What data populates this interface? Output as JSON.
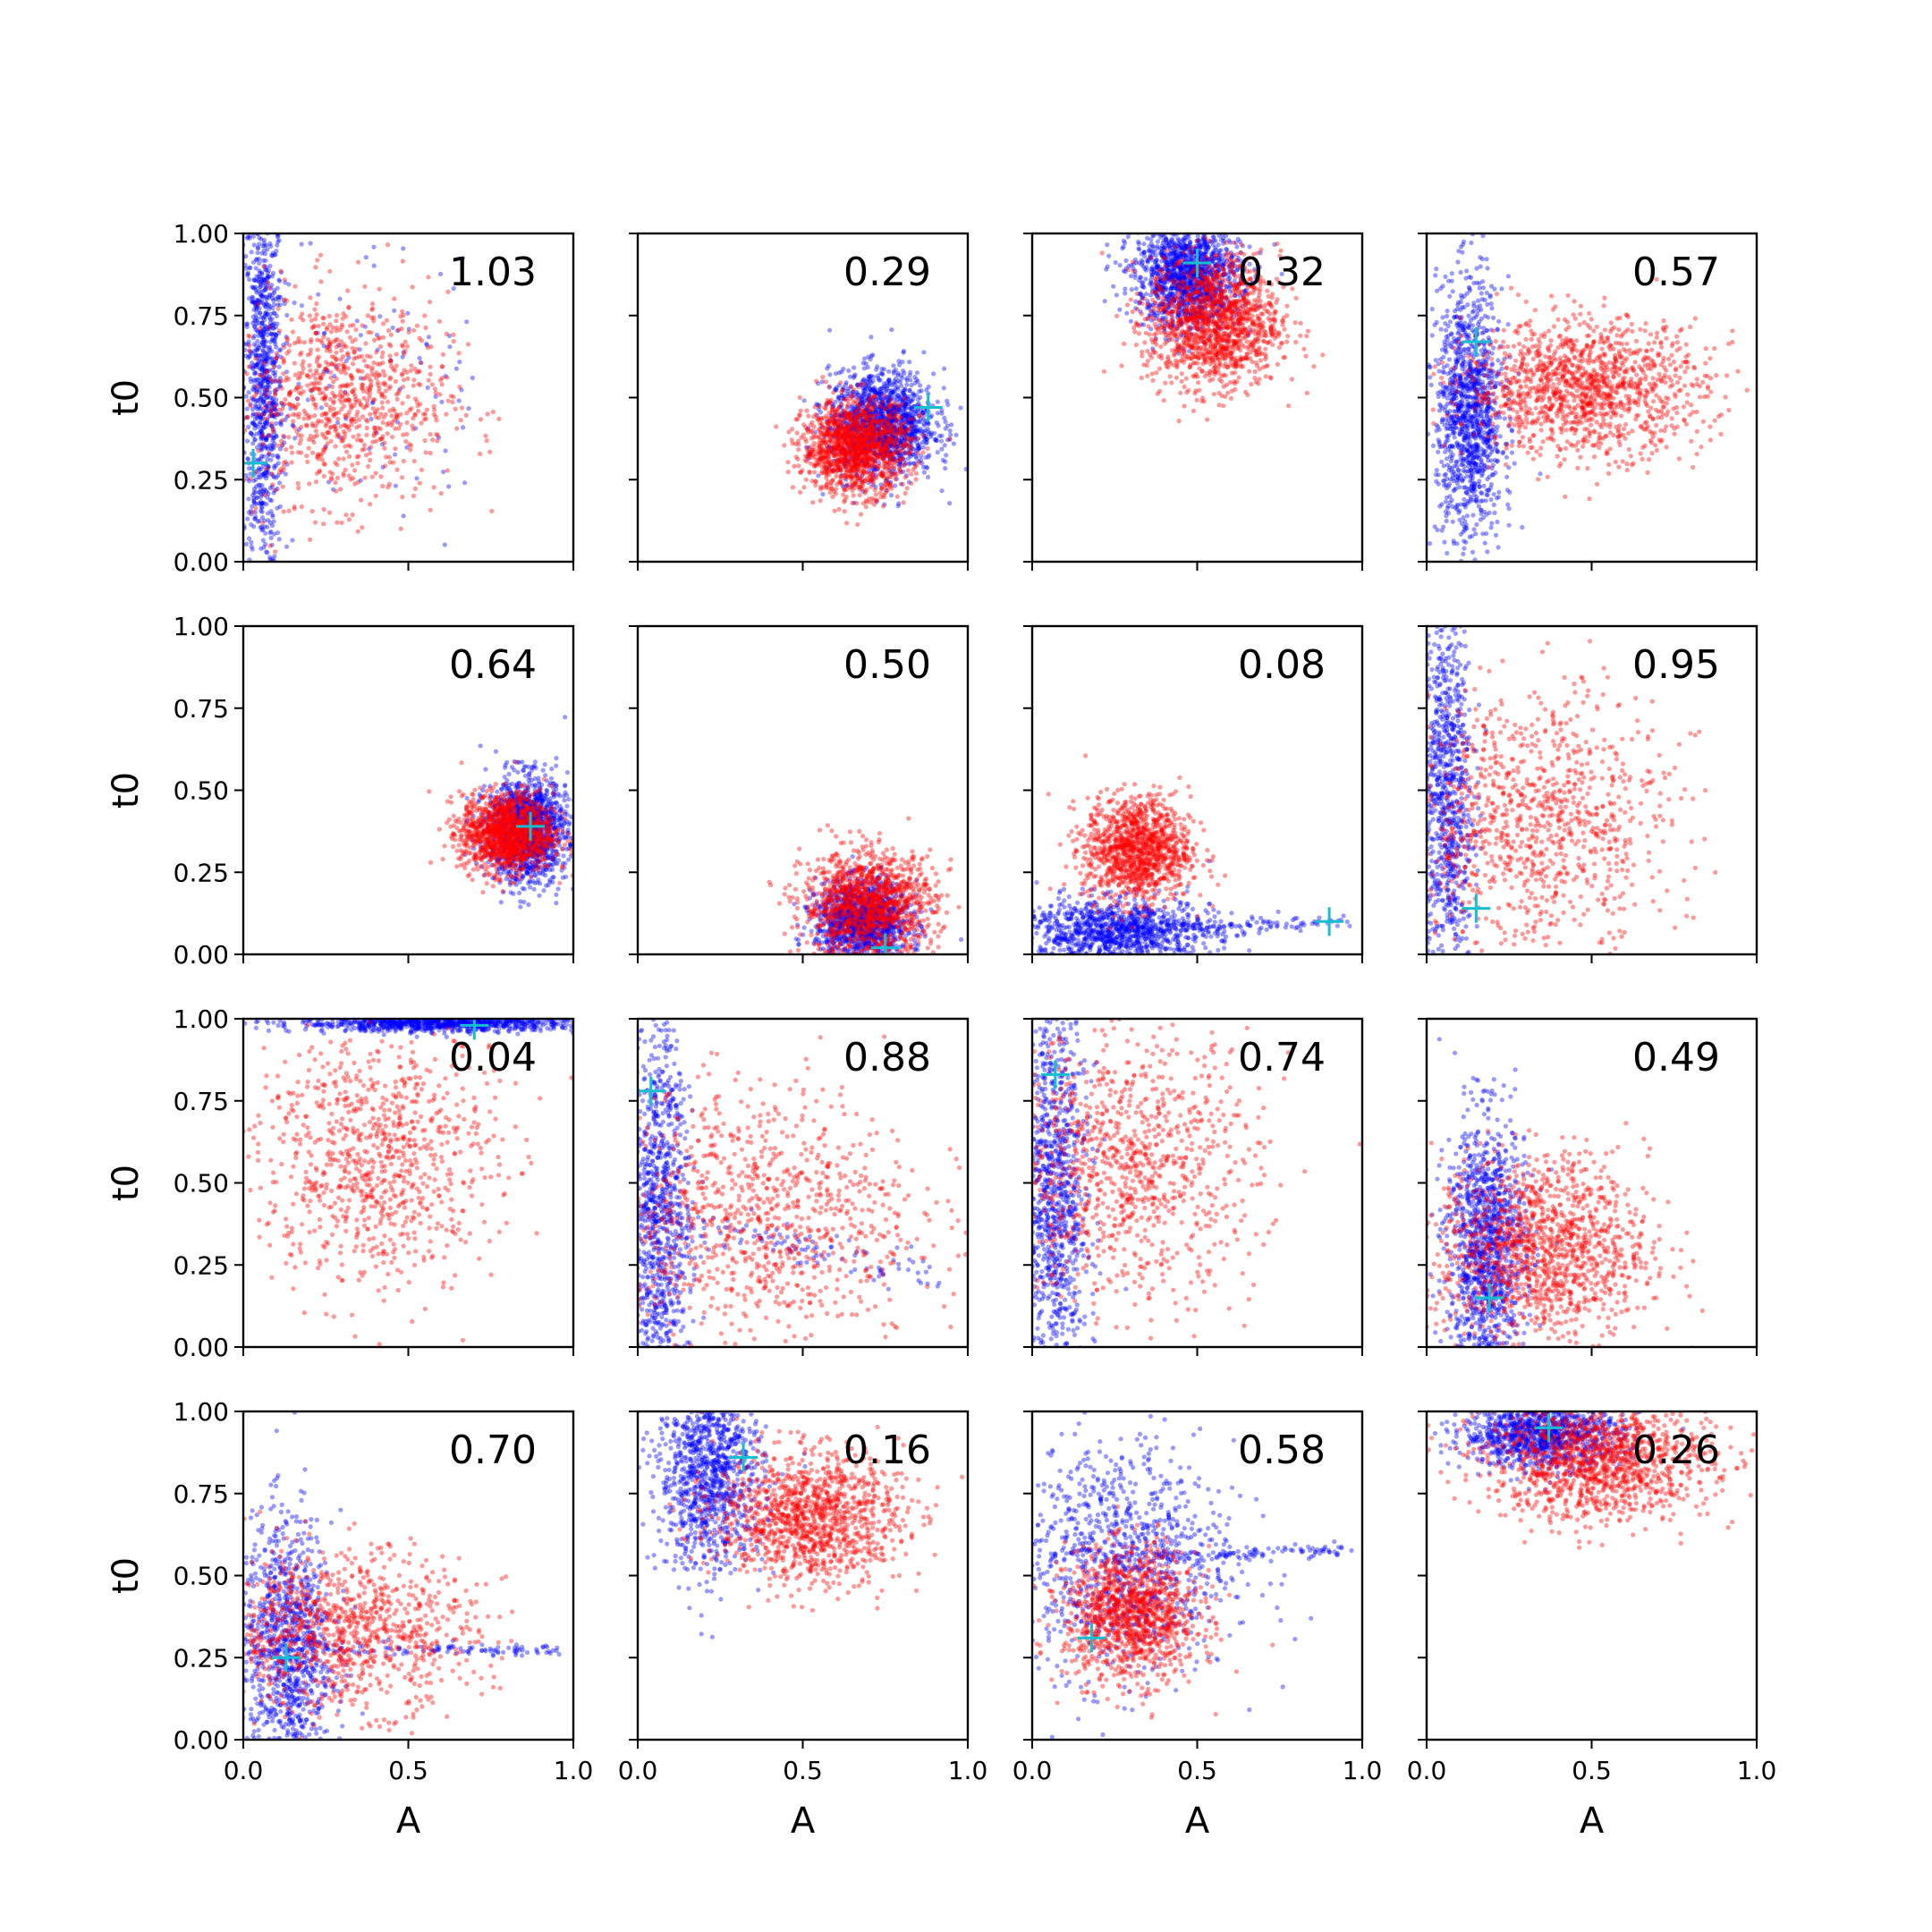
{
  "chart_data": [
    {
      "type": "scatter",
      "annotation": "1.03",
      "xlabel": "",
      "ylabel": "t0",
      "marker": [
        0.03,
        0.3
      ],
      "blue": {
        "cx": 0.06,
        "cy": 0.55,
        "sx": 0.03,
        "sy": 0.3,
        "n": 900,
        "tail": [
          0.7,
          0.55,
          0.25
        ]
      },
      "red": {
        "cx": 0.3,
        "cy": 0.5,
        "sx": 0.16,
        "sy": 0.16,
        "n": 900
      }
    },
    {
      "type": "scatter",
      "annotation": "0.29",
      "xlabel": "",
      "ylabel": "",
      "marker": [
        0.88,
        0.47
      ],
      "blue": {
        "cx": 0.74,
        "cy": 0.42,
        "sx": 0.08,
        "sy": 0.08,
        "n": 1400
      },
      "red": {
        "cx": 0.66,
        "cy": 0.35,
        "sx": 0.08,
        "sy": 0.07,
        "n": 1400
      }
    },
    {
      "type": "scatter",
      "annotation": "0.32",
      "xlabel": "",
      "ylabel": "",
      "marker": [
        0.5,
        0.91
      ],
      "blue": {
        "cx": 0.47,
        "cy": 0.87,
        "sx": 0.08,
        "sy": 0.08,
        "n": 1400
      },
      "red": {
        "cx": 0.55,
        "cy": 0.73,
        "sx": 0.1,
        "sy": 0.1,
        "n": 1400
      }
    },
    {
      "type": "scatter",
      "annotation": "0.57",
      "xlabel": "",
      "ylabel": "",
      "marker": [
        0.15,
        0.67
      ],
      "blue": {
        "cx": 0.13,
        "cy": 0.45,
        "sx": 0.05,
        "sy": 0.2,
        "n": 1200
      },
      "red": {
        "cx": 0.48,
        "cy": 0.53,
        "sx": 0.18,
        "sy": 0.1,
        "n": 1300
      }
    },
    {
      "type": "scatter",
      "annotation": "0.64",
      "xlabel": "",
      "ylabel": "t0",
      "marker": [
        0.87,
        0.39
      ],
      "blue": {
        "cx": 0.86,
        "cy": 0.38,
        "sx": 0.06,
        "sy": 0.08,
        "n": 1400
      },
      "red": {
        "cx": 0.8,
        "cy": 0.37,
        "sx": 0.07,
        "sy": 0.06,
        "n": 1400
      }
    },
    {
      "type": "scatter",
      "annotation": "0.50",
      "xlabel": "",
      "ylabel": "",
      "marker": [
        0.75,
        0.02
      ],
      "blue": {
        "cx": 0.68,
        "cy": 0.1,
        "sx": 0.07,
        "sy": 0.06,
        "n": 1300
      },
      "red": {
        "cx": 0.7,
        "cy": 0.15,
        "sx": 0.1,
        "sy": 0.08,
        "n": 1300
      }
    },
    {
      "type": "scatter",
      "annotation": "0.08",
      "xlabel": "",
      "ylabel": "",
      "marker": [
        0.9,
        0.1
      ],
      "blue": {
        "cx": 0.25,
        "cy": 0.07,
        "sx": 0.15,
        "sy": 0.05,
        "n": 1100,
        "tail": [
          0.95,
          0.1,
          0.01
        ]
      },
      "red": {
        "cx": 0.32,
        "cy": 0.32,
        "sx": 0.08,
        "sy": 0.08,
        "n": 1200
      }
    },
    {
      "type": "scatter",
      "annotation": "0.95",
      "xlabel": "",
      "ylabel": "",
      "marker": [
        0.15,
        0.14
      ],
      "blue": {
        "cx": 0.06,
        "cy": 0.5,
        "sx": 0.04,
        "sy": 0.3,
        "n": 900
      },
      "red": {
        "cx": 0.33,
        "cy": 0.4,
        "sx": 0.2,
        "sy": 0.2,
        "n": 1000
      }
    },
    {
      "type": "scatter",
      "annotation": "0.04",
      "xlabel": "",
      "ylabel": "t0",
      "marker": [
        0.7,
        0.98
      ],
      "blue": {
        "cx": 0.6,
        "cy": 0.985,
        "sx": 0.22,
        "sy": 0.012,
        "n": 900
      },
      "red": {
        "cx": 0.4,
        "cy": 0.58,
        "sx": 0.18,
        "sy": 0.2,
        "n": 900
      }
    },
    {
      "type": "scatter",
      "annotation": "0.88",
      "xlabel": "",
      "ylabel": "",
      "marker": [
        0.04,
        0.78
      ],
      "blue": {
        "cx": 0.06,
        "cy": 0.4,
        "sx": 0.05,
        "sy": 0.3,
        "n": 1000,
        "tail": [
          0.9,
          0.22,
          0.03
        ]
      },
      "red": {
        "cx": 0.35,
        "cy": 0.4,
        "sx": 0.25,
        "sy": 0.2,
        "n": 1000
      }
    },
    {
      "type": "scatter",
      "annotation": "0.74",
      "xlabel": "",
      "ylabel": "",
      "marker": [
        0.07,
        0.83
      ],
      "blue": {
        "cx": 0.07,
        "cy": 0.45,
        "sx": 0.05,
        "sy": 0.3,
        "n": 1000
      },
      "red": {
        "cx": 0.28,
        "cy": 0.55,
        "sx": 0.2,
        "sy": 0.2,
        "n": 1000
      }
    },
    {
      "type": "scatter",
      "annotation": "0.49",
      "xlabel": "",
      "ylabel": "",
      "marker": [
        0.19,
        0.15
      ],
      "blue": {
        "cx": 0.18,
        "cy": 0.3,
        "sx": 0.06,
        "sy": 0.2,
        "n": 1200
      },
      "red": {
        "cx": 0.35,
        "cy": 0.3,
        "sx": 0.16,
        "sy": 0.14,
        "n": 1300
      }
    },
    {
      "type": "scatter",
      "annotation": "0.70",
      "xlabel": "A",
      "ylabel": "t0",
      "marker": [
        0.13,
        0.25
      ],
      "blue": {
        "cx": 0.13,
        "cy": 0.28,
        "sx": 0.07,
        "sy": 0.2,
        "n": 1000,
        "tail": [
          0.95,
          0.27,
          0.01
        ]
      },
      "red": {
        "cx": 0.3,
        "cy": 0.33,
        "sx": 0.2,
        "sy": 0.12,
        "n": 1000
      }
    },
    {
      "type": "scatter",
      "annotation": "0.16",
      "xlabel": "A",
      "ylabel": "",
      "marker": [
        0.32,
        0.86
      ],
      "blue": {
        "cx": 0.22,
        "cy": 0.82,
        "sx": 0.08,
        "sy": 0.15,
        "n": 1100
      },
      "red": {
        "cx": 0.52,
        "cy": 0.68,
        "sx": 0.14,
        "sy": 0.1,
        "n": 1200
      }
    },
    {
      "type": "scatter",
      "annotation": "0.58",
      "xlabel": "A",
      "ylabel": "",
      "marker": [
        0.18,
        0.31
      ],
      "blue": {
        "cx": 0.25,
        "cy": 0.55,
        "sx": 0.18,
        "sy": 0.18,
        "n": 1000,
        "tail": [
          0.95,
          0.58,
          0.01
        ]
      },
      "red": {
        "cx": 0.3,
        "cy": 0.38,
        "sx": 0.1,
        "sy": 0.1,
        "n": 1200
      }
    },
    {
      "type": "scatter",
      "annotation": "0.26",
      "xlabel": "A",
      "ylabel": "",
      "marker": [
        0.37,
        0.95
      ],
      "blue": {
        "cx": 0.35,
        "cy": 0.93,
        "sx": 0.12,
        "sy": 0.05,
        "n": 1100
      },
      "red": {
        "cx": 0.52,
        "cy": 0.85,
        "sx": 0.17,
        "sy": 0.09,
        "n": 1300
      }
    }
  ],
  "axes": {
    "xlim": [
      0,
      1
    ],
    "ylim": [
      0,
      1
    ],
    "xticks": [
      "0.0",
      "0.5",
      "1.0"
    ],
    "yticks": [
      "0.00",
      "0.25",
      "0.50",
      "0.75",
      "1.00"
    ]
  },
  "colors": {
    "blue": "#0000ff",
    "red": "#ff0000",
    "marker": "#17becf",
    "frame": "#000000"
  }
}
